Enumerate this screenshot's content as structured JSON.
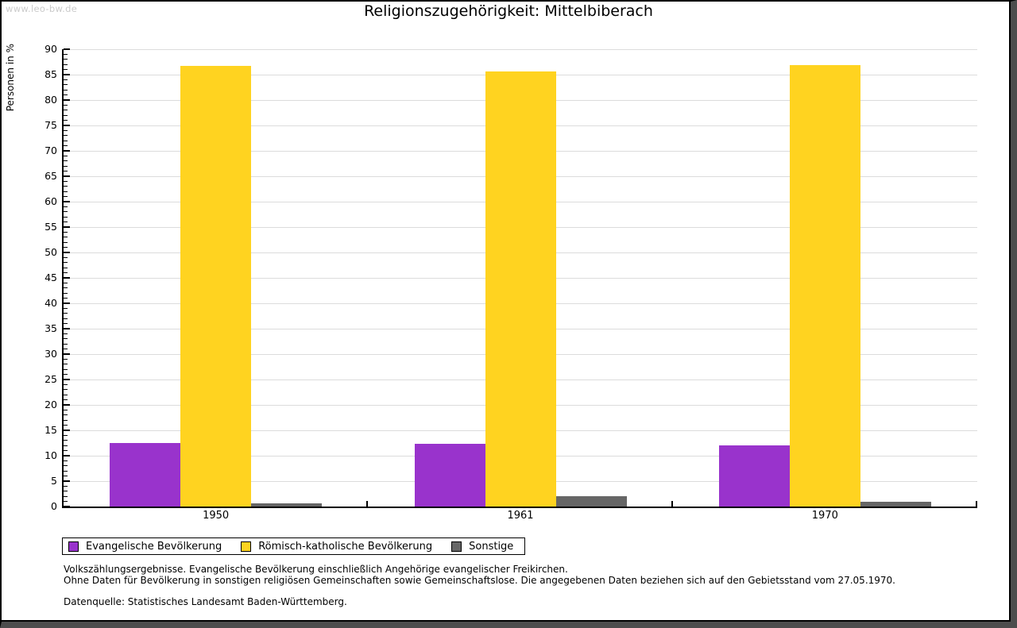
{
  "watermark": "www.leo-bw.de",
  "chart_data": {
    "type": "bar",
    "title": "Religionszugehörigkeit: Mittelbiberach",
    "xlabel": "",
    "ylabel": "Personen in %",
    "categories": [
      "1950",
      "1961",
      "1970"
    ],
    "series": [
      {
        "name": "Evangelische Bevölkerung",
        "color": "#9933cc",
        "values": [
          12.5,
          12.4,
          12.0
        ]
      },
      {
        "name": "Römisch-katholische Bevölkerung",
        "color": "#ffd320",
        "values": [
          86.7,
          85.7,
          86.9
        ]
      },
      {
        "name": "Sonstige",
        "color": "#666666",
        "values": [
          0.7,
          2.0,
          0.9
        ]
      }
    ],
    "ylim": [
      0,
      90
    ],
    "ytick_step": 5,
    "yminor_step": 1,
    "grid": true,
    "legend_position": "bottom-left"
  },
  "footnotes": {
    "line1": "Volkszählungsergebnisse. Evangelische Bevölkerung einschließlich Angehörige evangelischer Freikirchen.",
    "line2": "Ohne Daten für Bevölkerung in sonstigen religiösen Gemeinschaften sowie Gemeinschaftslose. Die angegebenen Daten beziehen sich auf den Gebietsstand vom 27.05.1970.",
    "source": "Datenquelle: Statistisches Landesamt Baden-Württemberg."
  }
}
